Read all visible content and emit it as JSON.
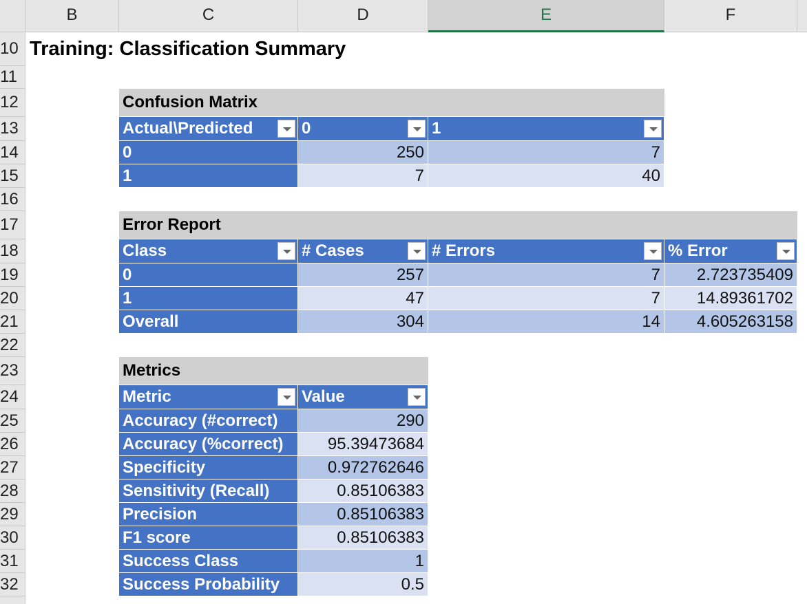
{
  "columns": [
    "B",
    "C",
    "D",
    "E",
    "F"
  ],
  "rows": [
    "10",
    "11",
    "12",
    "13",
    "14",
    "15",
    "16",
    "17",
    "18",
    "19",
    "20",
    "21",
    "22",
    "23",
    "24",
    "25",
    "26",
    "27",
    "28",
    "29",
    "30",
    "31",
    "32"
  ],
  "title": "Training: Classification Summary",
  "confusion_matrix": {
    "title": "Confusion Matrix",
    "header": [
      "Actual\\Predicted",
      "0",
      "1"
    ],
    "rows": [
      [
        "0",
        250,
        7
      ],
      [
        "1",
        7,
        40
      ]
    ]
  },
  "error_report": {
    "title": "Error Report",
    "header": [
      "Class",
      "# Cases",
      "# Errors",
      "% Error"
    ],
    "rows": [
      [
        "0",
        257,
        7,
        2.723735409
      ],
      [
        "1",
        47,
        7,
        14.89361702
      ],
      [
        "Overall",
        304,
        14,
        4.605263158
      ]
    ]
  },
  "metrics": {
    "title": "Metrics",
    "header": [
      "Metric",
      "Value"
    ],
    "rows": [
      [
        "Accuracy (#correct)",
        290
      ],
      [
        "Accuracy (%correct)",
        95.39473684
      ],
      [
        "Specificity",
        0.972762646
      ],
      [
        "Sensitivity (Recall)",
        0.85106383
      ],
      [
        "Precision",
        0.85106383
      ],
      [
        "F1 score",
        0.85106383
      ],
      [
        "Success Class",
        1
      ],
      [
        "Success Probability",
        0.5
      ]
    ]
  }
}
